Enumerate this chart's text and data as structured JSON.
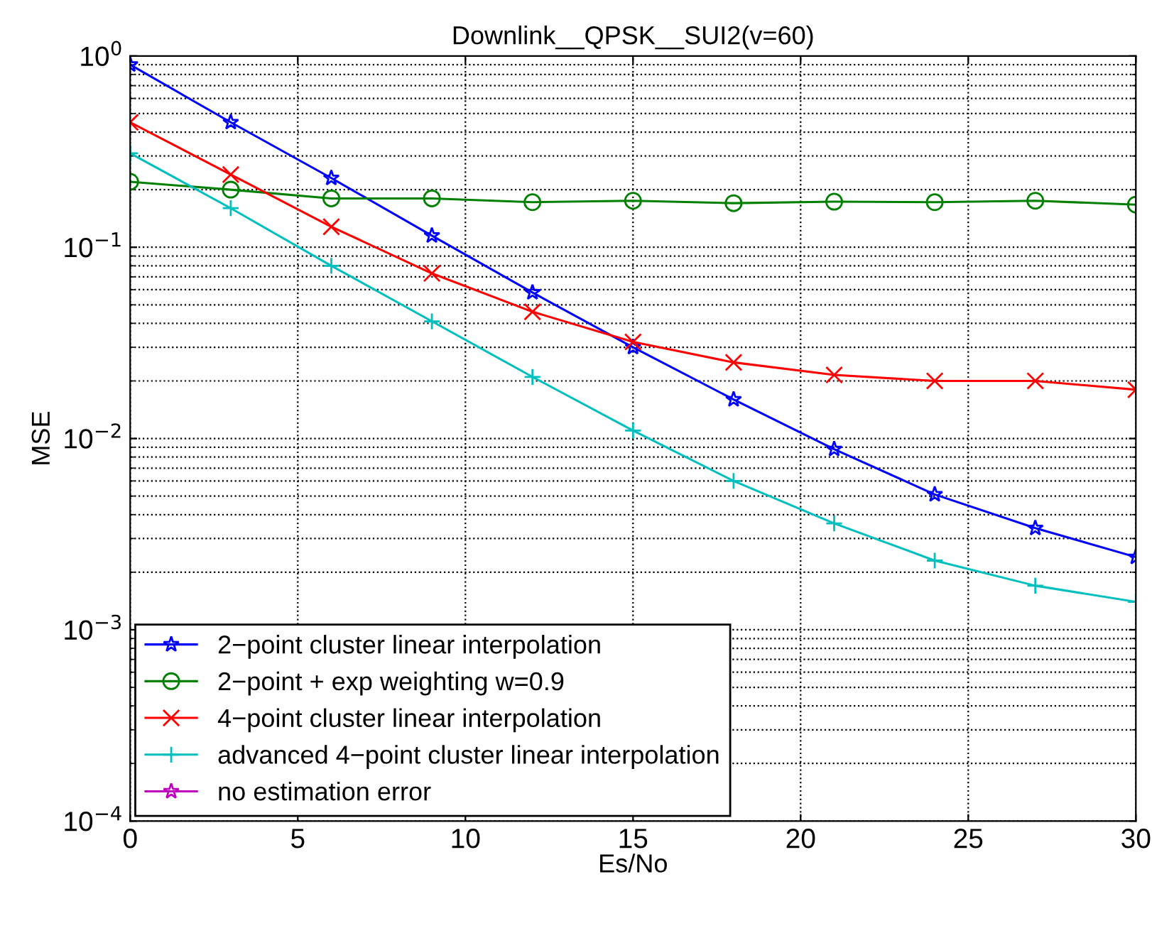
{
  "chart_data": {
    "type": "line",
    "title": "Downlink__QPSK__SUI2(v=60)",
    "xlabel": "Es/No",
    "ylabel": "MSE",
    "x": [
      0,
      3,
      6,
      9,
      12,
      15,
      18,
      21,
      24,
      27,
      30
    ],
    "xlim": [
      0,
      30
    ],
    "xticks": [
      0,
      5,
      10,
      15,
      20,
      25,
      30
    ],
    "log": "y",
    "ylim": [
      0.0001,
      1
    ],
    "yticks": [
      {
        "value": 0.0001,
        "label": "10$^{−4}$"
      },
      {
        "value": 0.001,
        "label": "10$^{−3}$"
      },
      {
        "value": 0.01,
        "label": "10$^{−2}$"
      },
      {
        "value": 0.1,
        "label": "10$^{−1}$"
      },
      {
        "value": 1,
        "label": "10$^{0}$"
      }
    ],
    "grid": true,
    "legend": "bottom left",
    "line_style": "solid",
    "series": [
      {
        "name": "2−point cluster linear interpolation",
        "color": "#0000ff",
        "marker": "star",
        "values": [
          0.9,
          0.45,
          0.23,
          0.115,
          0.058,
          0.03,
          0.016,
          0.0088,
          0.0051,
          0.0034,
          0.0024
        ]
      },
      {
        "name": "2−point + exp weighting w=0.9",
        "color": "#008000",
        "marker": "circle",
        "values": [
          0.22,
          0.2,
          0.18,
          0.18,
          0.172,
          0.175,
          0.17,
          0.173,
          0.172,
          0.175,
          0.167
        ]
      },
      {
        "name": "4−point cluster linear interpolation",
        "color": "#ff0000",
        "marker": "cross",
        "values": [
          0.45,
          0.24,
          0.128,
          0.073,
          0.046,
          0.032,
          0.025,
          0.0215,
          0.02,
          0.02,
          0.018
        ]
      },
      {
        "name": "advanced 4−point cluster linear interpolation",
        "color": "#00bfbf",
        "marker": "plus",
        "values": [
          0.31,
          0.16,
          0.08,
          0.041,
          0.021,
          0.011,
          0.006,
          0.0036,
          0.0023,
          0.0017,
          0.0014
        ]
      },
      {
        "name": "no estimation error",
        "color": "#bf00bf",
        "marker": "star",
        "values": [
          null,
          null,
          null,
          null,
          null,
          null,
          null,
          null,
          null,
          null,
          null
        ]
      }
    ]
  }
}
